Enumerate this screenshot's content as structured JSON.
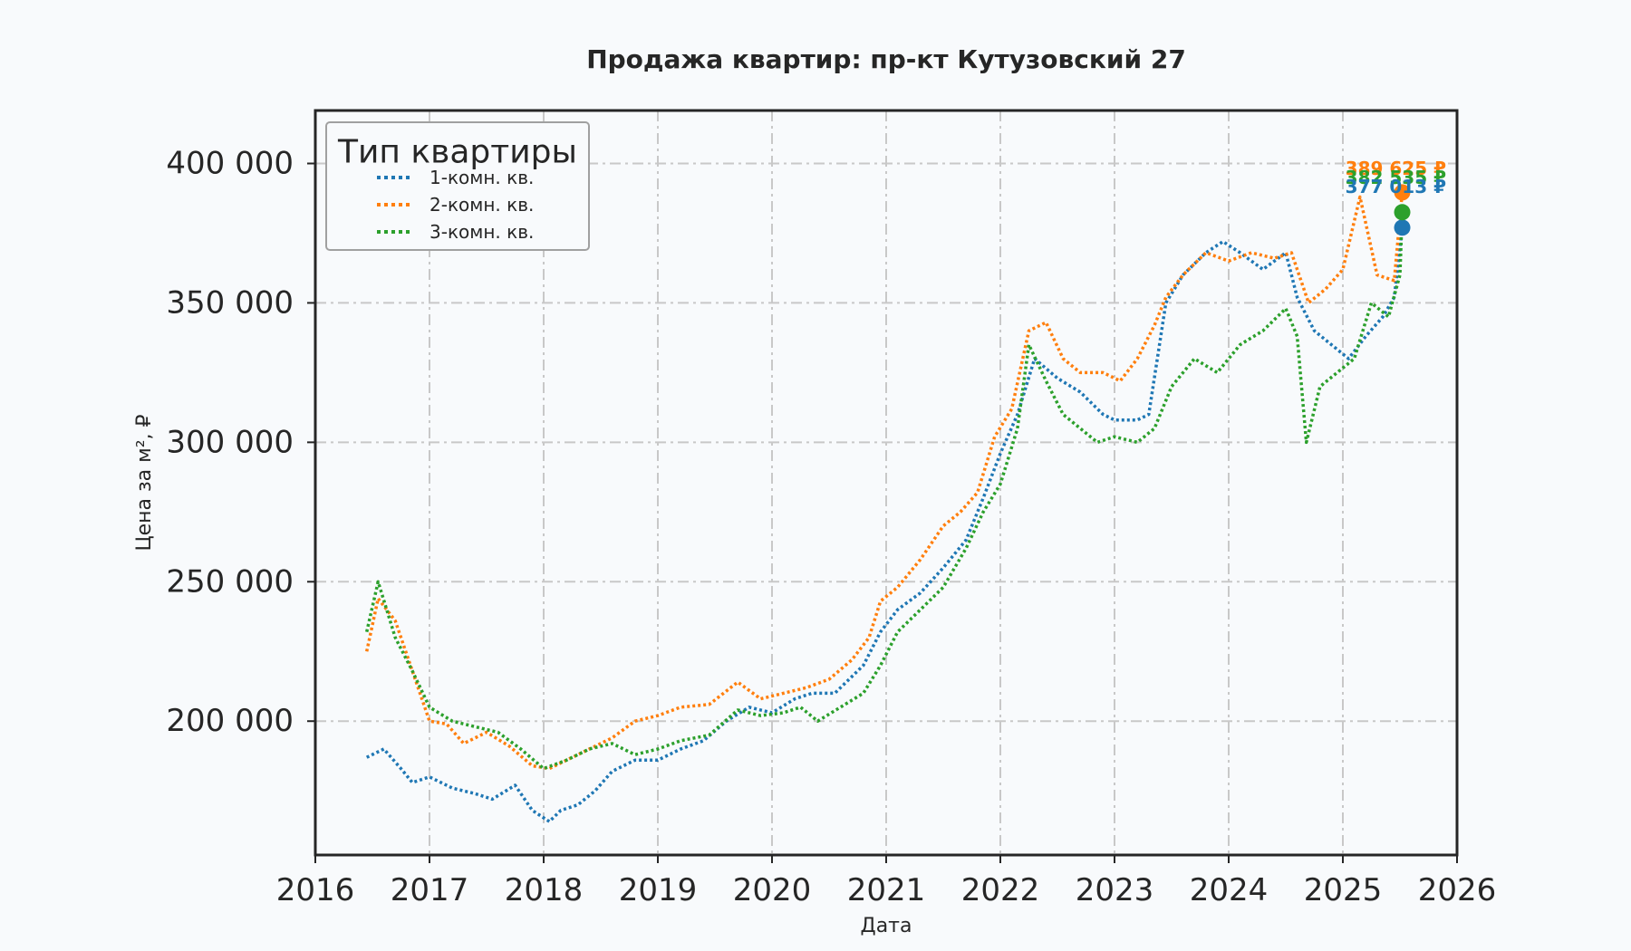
{
  "chart_data": {
    "type": "line",
    "title": "Продажа квартир: пр-кт Кутузовский 27",
    "xlabel": "Дата",
    "ylabel": "Цена за м², ₽",
    "xlim": [
      2016,
      2026
    ],
    "ylim": [
      152000,
      419000
    ],
    "x_ticks": [
      2016,
      2017,
      2018,
      2019,
      2020,
      2021,
      2022,
      2023,
      2024,
      2025,
      2026
    ],
    "x_tick_labels": [
      "2016",
      "2017",
      "2018",
      "2019",
      "2020",
      "2021",
      "2022",
      "2023",
      "2024",
      "2025",
      "2026"
    ],
    "y_ticks": [
      200000,
      250000,
      300000,
      350000,
      400000
    ],
    "y_tick_labels": [
      "200 000",
      "250 000",
      "300 000",
      "350 000",
      "400 000"
    ],
    "grid": true,
    "legend": {
      "title": "Тип квартиры",
      "placement": "top-left"
    },
    "series": [
      {
        "name": "1-комн. кв.",
        "color": "#1f77b4",
        "x": [
          2016.45,
          2016.6,
          2016.75,
          2016.85,
          2017.0,
          2017.2,
          2017.4,
          2017.55,
          2017.75,
          2017.9,
          2018.05,
          2018.15,
          2018.3,
          2018.45,
          2018.6,
          2018.8,
          2019.0,
          2019.2,
          2019.4,
          2019.6,
          2019.8,
          2020.0,
          2020.2,
          2020.35,
          2020.55,
          2020.8,
          2020.95,
          2021.1,
          2021.3,
          2021.5,
          2021.7,
          2021.85,
          2022.0,
          2022.15,
          2022.3,
          2022.5,
          2022.7,
          2022.9,
          2023.0,
          2023.2,
          2023.3,
          2023.45,
          2023.6,
          2023.8,
          2023.95,
          2024.1,
          2024.3,
          2024.5,
          2024.6,
          2024.75,
          2024.9,
          2025.05,
          2025.2,
          2025.35,
          2025.45,
          2025.52
        ],
        "y": [
          187000,
          190000,
          183000,
          178000,
          180000,
          176000,
          174000,
          172000,
          177000,
          168000,
          164000,
          168000,
          170000,
          175000,
          182000,
          186000,
          186000,
          190000,
          193000,
          200000,
          205000,
          203000,
          208000,
          210000,
          210000,
          220000,
          232000,
          240000,
          246000,
          255000,
          265000,
          280000,
          296000,
          310000,
          330000,
          323000,
          318000,
          310000,
          308000,
          308000,
          310000,
          350000,
          360000,
          368000,
          372000,
          368000,
          362000,
          368000,
          352000,
          340000,
          335000,
          330000,
          338000,
          345000,
          352000,
          377013
        ]
      },
      {
        "name": "2-комн. кв.",
        "color": "#ff7f0e",
        "x": [
          2016.45,
          2016.55,
          2016.7,
          2016.85,
          2017.0,
          2017.15,
          2017.3,
          2017.5,
          2017.7,
          2017.9,
          2018.05,
          2018.2,
          2018.4,
          2018.6,
          2018.8,
          2019.0,
          2019.2,
          2019.45,
          2019.7,
          2019.9,
          2020.1,
          2020.3,
          2020.5,
          2020.7,
          2020.85,
          2020.95,
          2021.1,
          2021.3,
          2021.5,
          2021.65,
          2021.8,
          2021.95,
          2022.1,
          2022.25,
          2022.4,
          2022.55,
          2022.7,
          2022.9,
          2023.05,
          2023.2,
          2023.35,
          2023.45,
          2023.6,
          2023.8,
          2024.0,
          2024.2,
          2024.4,
          2024.55,
          2024.7,
          2024.85,
          2025.0,
          2025.15,
          2025.3,
          2025.45,
          2025.52
        ],
        "y": [
          225000,
          244000,
          236000,
          218000,
          200000,
          199000,
          192000,
          196000,
          191000,
          184000,
          183000,
          186000,
          190000,
          194000,
          200000,
          202000,
          205000,
          206000,
          214000,
          208000,
          210000,
          212000,
          215000,
          222000,
          230000,
          243000,
          248000,
          258000,
          270000,
          275000,
          282000,
          302000,
          312000,
          340000,
          343000,
          330000,
          325000,
          325000,
          322000,
          330000,
          342000,
          352000,
          360000,
          368000,
          365000,
          368000,
          366000,
          368000,
          350000,
          355000,
          362000,
          388000,
          360000,
          358000,
          389625
        ]
      },
      {
        "name": "3-комн. кв.",
        "color": "#2ca02c",
        "x": [
          2016.45,
          2016.55,
          2016.7,
          2016.85,
          2017.0,
          2017.2,
          2017.4,
          2017.6,
          2017.8,
          2018.0,
          2018.2,
          2018.4,
          2018.6,
          2018.8,
          2019.0,
          2019.2,
          2019.45,
          2019.7,
          2019.9,
          2020.1,
          2020.25,
          2020.4,
          2020.6,
          2020.8,
          2020.95,
          2021.1,
          2021.3,
          2021.5,
          2021.7,
          2021.85,
          2022.0,
          2022.15,
          2022.25,
          2022.4,
          2022.55,
          2022.7,
          2022.85,
          2023.0,
          2023.2,
          2023.35,
          2023.5,
          2023.7,
          2023.9,
          2024.1,
          2024.3,
          2024.5,
          2024.6,
          2024.68,
          2024.8,
          2024.95,
          2025.1,
          2025.25,
          2025.4,
          2025.5,
          2025.52
        ],
        "y": [
          232000,
          250000,
          230000,
          218000,
          205000,
          200000,
          198000,
          196000,
          190000,
          183000,
          186000,
          190000,
          192000,
          188000,
          190000,
          193000,
          195000,
          204000,
          202000,
          203000,
          205000,
          200000,
          205000,
          210000,
          220000,
          232000,
          240000,
          248000,
          262000,
          275000,
          285000,
          305000,
          335000,
          322000,
          310000,
          305000,
          300000,
          302000,
          300000,
          305000,
          320000,
          330000,
          325000,
          335000,
          340000,
          348000,
          338000,
          300000,
          320000,
          325000,
          330000,
          350000,
          345000,
          360000,
          382535
        ]
      }
    ],
    "end_labels": [
      {
        "series": "2-комн. кв.",
        "text": "389 625 ₽",
        "value": 389625,
        "color": "#ff7f0e"
      },
      {
        "series": "3-комн. кв.",
        "text": "382 535 ₽",
        "value": 382535,
        "color": "#2ca02c"
      },
      {
        "series": "1-комн. кв.",
        "text": "377 013 ₽",
        "value": 377013,
        "color": "#1f77b4"
      }
    ]
  }
}
